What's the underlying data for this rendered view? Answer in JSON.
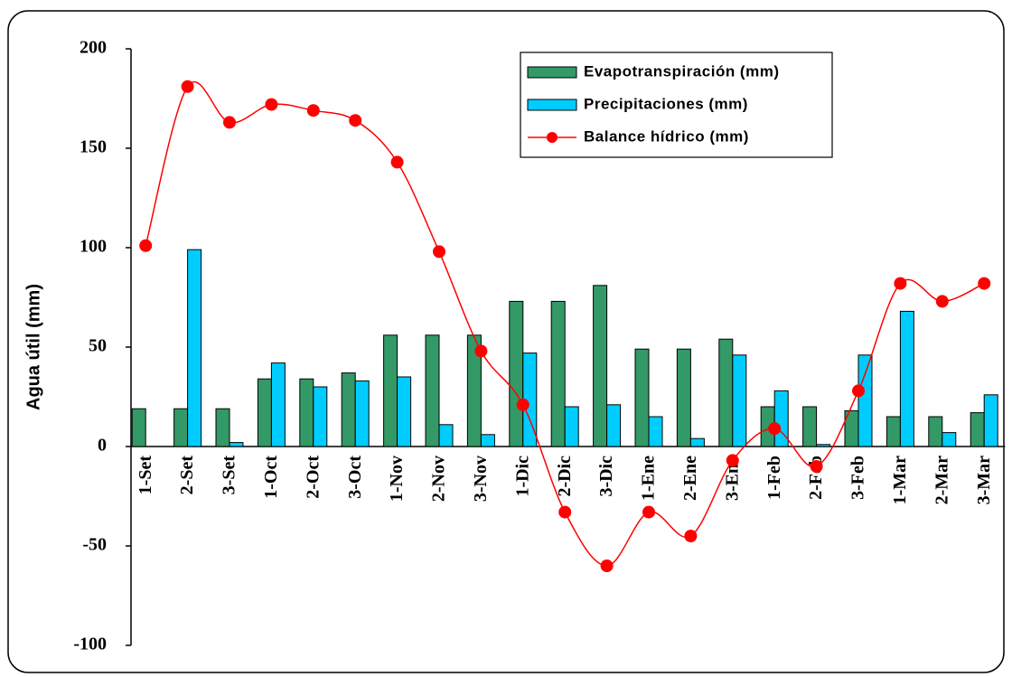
{
  "chart_data": {
    "type": "bar-line",
    "y_label": "Agua útil (mm)",
    "categories": [
      "1-Set",
      "2-Set",
      "3-Set",
      "1-Oct",
      "2-Oct",
      "3-Oct",
      "1-Nov",
      "2-Nov",
      "3-Nov",
      "1-Dic",
      "2-Dic",
      "3-Dic",
      "1-Ene",
      "2-Ene",
      "3-Ene",
      "1-Feb",
      "2-Feb",
      "3-Feb",
      "1-Mar",
      "2-Mar",
      "3-Mar"
    ],
    "series": [
      {
        "name": "Evapotranspiración (mm)",
        "kind": "bar",
        "color": "#339966",
        "values": [
          19,
          19,
          19,
          34,
          34,
          37,
          56,
          56,
          56,
          73,
          73,
          81,
          49,
          49,
          54,
          20,
          20,
          18,
          15,
          15,
          17
        ]
      },
      {
        "name": "Precipitaciones (mm)",
        "kind": "bar",
        "color": "#00ccff",
        "values": [
          0,
          99,
          2,
          42,
          30,
          33,
          35,
          11,
          6,
          47,
          20,
          21,
          15,
          4,
          46,
          28,
          1,
          46,
          68,
          7,
          26
        ]
      },
      {
        "name": "Balance hídrico (mm)",
        "kind": "line",
        "color": "#ff0000",
        "values": [
          101,
          181,
          163,
          172,
          169,
          164,
          143,
          98,
          48,
          21,
          -33,
          -60,
          -33,
          -45,
          -7,
          9,
          -10,
          28,
          82,
          73,
          82
        ]
      }
    ],
    "ylim": [
      -100,
      200
    ],
    "yticks": [
      -100,
      -50,
      0,
      50,
      100,
      150,
      200
    ],
    "legend": "top-right"
  }
}
